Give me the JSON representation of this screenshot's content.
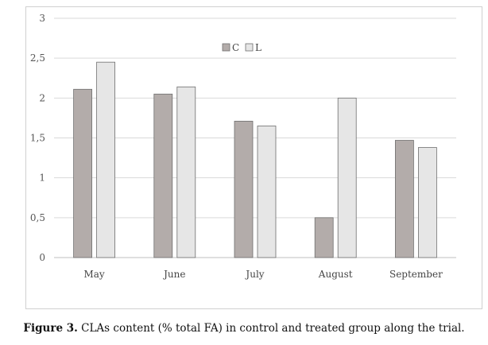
{
  "caption": {
    "label": "Figure 3.",
    "text": " CLAs content (% total FA) in control and treated group along the trial."
  },
  "colors": {
    "C": "#b3acaa",
    "L": "#e6e6e6",
    "bar_stroke": "#6f6f6f",
    "grid": "#d9d9d9",
    "axis": "#bfbfbf"
  },
  "chart_data": {
    "type": "bar",
    "categories": [
      "May",
      "June",
      "July",
      "August",
      "September"
    ],
    "series": [
      {
        "name": "C",
        "values": [
          2.11,
          2.05,
          1.71,
          0.5,
          1.47
        ]
      },
      {
        "name": "L",
        "values": [
          2.45,
          2.14,
          1.65,
          2.0,
          1.38
        ]
      }
    ],
    "ylim": [
      0,
      3
    ],
    "yticks": [
      "0",
      "0,5",
      "1",
      "1,5",
      "2",
      "2,5",
      "3"
    ],
    "grid": true,
    "legend": "top-center",
    "title": "",
    "xlabel": "",
    "ylabel": ""
  }
}
